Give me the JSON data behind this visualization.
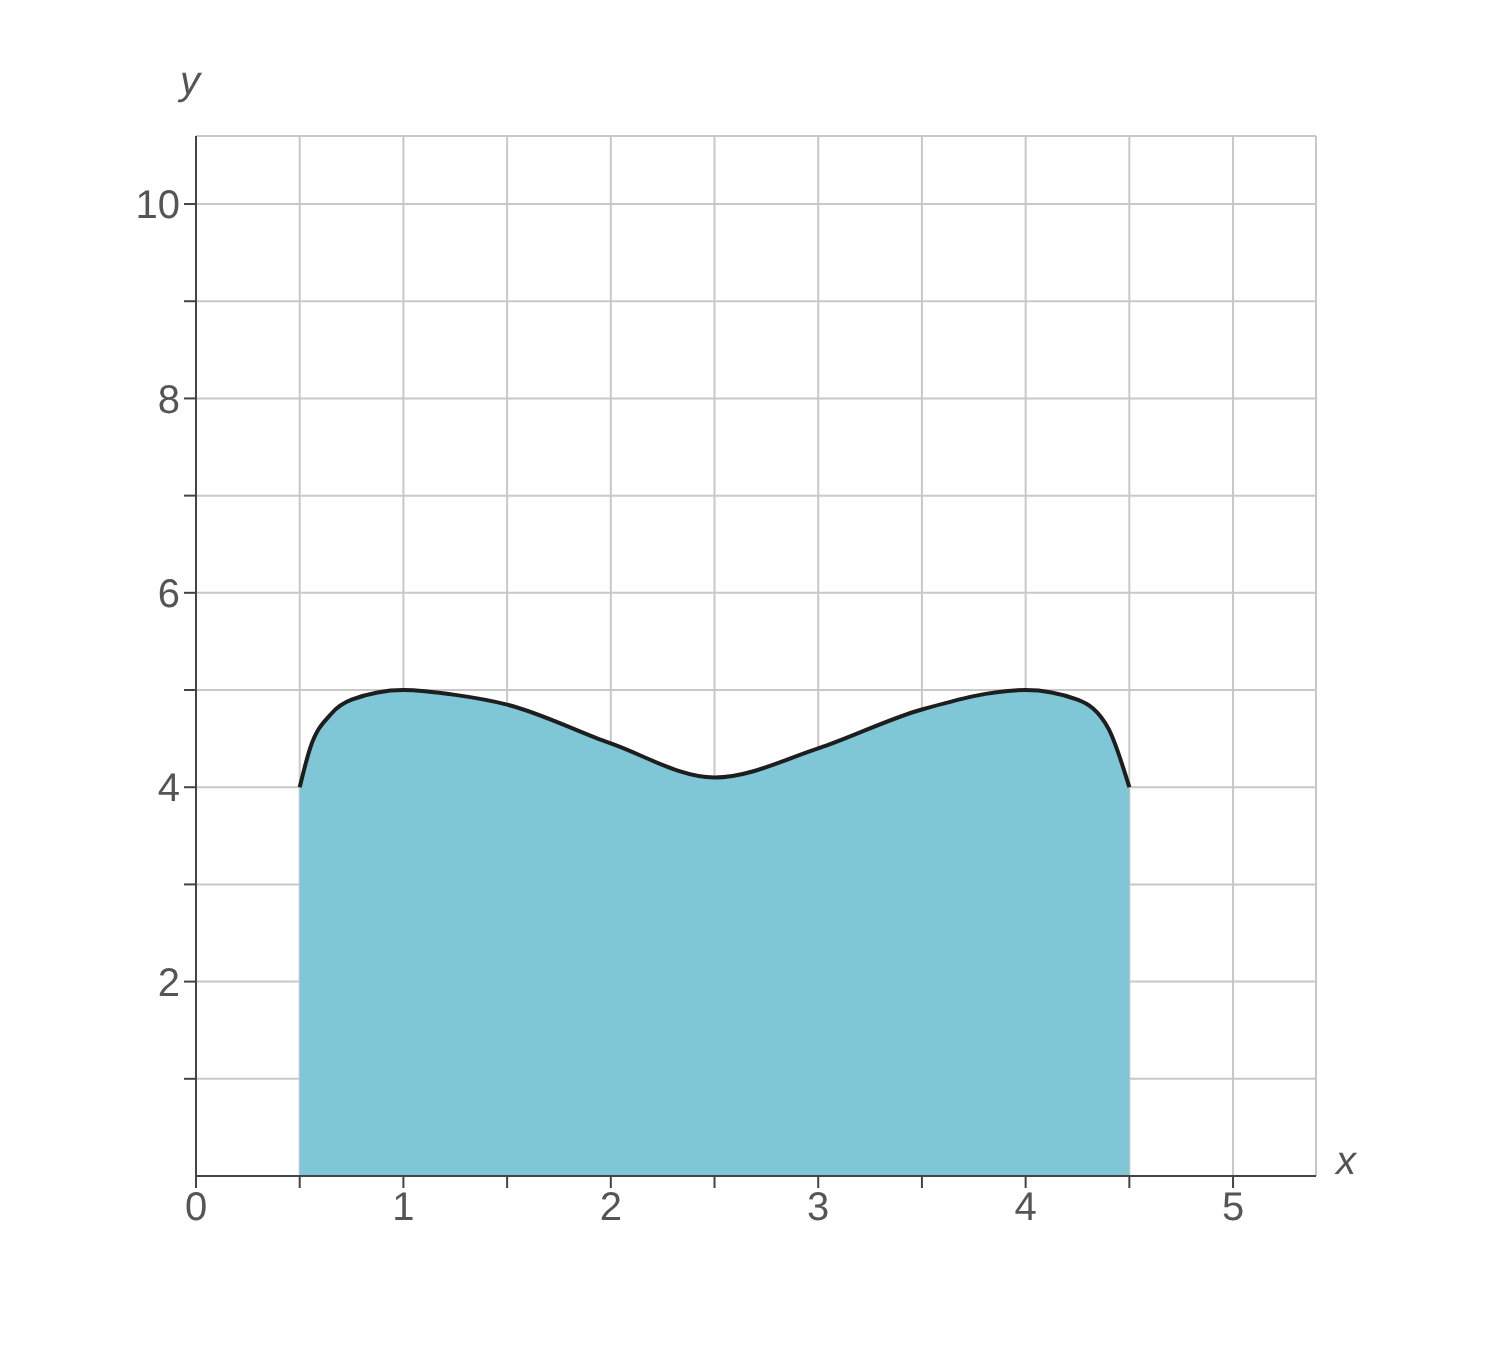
{
  "chart_data": {
    "type": "area",
    "xlabel": "x",
    "ylabel": "y",
    "x": [
      0.5,
      0.55,
      0.65,
      0.75,
      1,
      1.25,
      1.5,
      2,
      2.5,
      3,
      3.5,
      4,
      4.25,
      4.4,
      4.5
    ],
    "series": [
      {
        "color": "#7fc6d6",
        "values": [
          4,
          4.4,
          4.75,
          4.9,
          5,
          4.95,
          4.85,
          4.45,
          4.1,
          4.4,
          4.8,
          5,
          4.9,
          4.6,
          4
        ]
      }
    ],
    "xlim": [
      0,
      5.4
    ],
    "ylim": [
      0,
      10.7
    ],
    "xticks": [
      0,
      {
        "value": 0.5,
        "label": null
      },
      1,
      {
        "value": 1.5,
        "label": null
      },
      2,
      {
        "value": 2.5,
        "label": null
      },
      3,
      {
        "value": 3.5,
        "label": null
      },
      4,
      {
        "value": 4.5,
        "label": null
      },
      5
    ],
    "yticks": [
      {
        "value": 1,
        "label": null
      },
      2,
      {
        "value": 3,
        "label": null
      },
      4,
      {
        "value": 5,
        "label": null
      },
      6,
      {
        "value": 7,
        "label": null
      },
      8,
      {
        "value": 9,
        "label": null
      },
      10
    ],
    "grid": true
  }
}
